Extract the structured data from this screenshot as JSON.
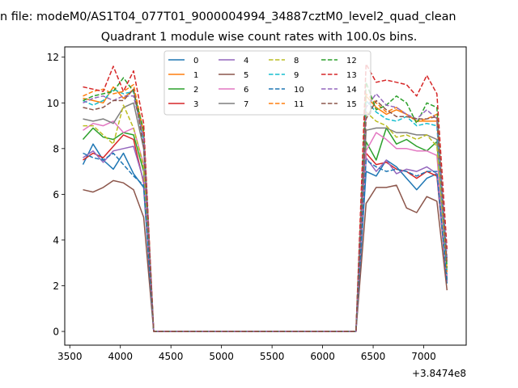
{
  "figure": {
    "suptitle": "n file: modeM0/AS1T04_077T01_9000004994_34887cztM0_level2_quad_clean",
    "offset_label": "+3.8474e8"
  },
  "chart_data": {
    "type": "line",
    "title": "Quadrant 1 module wise count rates with 100.0s bins.",
    "xlabel": "",
    "ylabel": "",
    "xlim": [
      3450,
      7420
    ],
    "ylim": [
      -0.6,
      12.45
    ],
    "x_offset": 384740000,
    "xticks": [
      3500,
      4000,
      4500,
      5000,
      5500,
      6000,
      6500,
      7000
    ],
    "yticks": [
      0,
      2,
      4,
      6,
      8,
      10,
      12
    ],
    "grid": false,
    "legend": {
      "placement": "upper-center",
      "columns": 4
    },
    "x": [
      3630,
      3730,
      3830,
      3930,
      4030,
      4130,
      4230,
      4330,
      4430,
      4530,
      4630,
      4730,
      4830,
      4930,
      5030,
      5130,
      5230,
      5330,
      5430,
      5530,
      5630,
      5730,
      5830,
      5930,
      6030,
      6130,
      6230,
      6330,
      6430,
      6530,
      6630,
      6730,
      6830,
      6930,
      7030,
      7130,
      7230
    ],
    "series": [
      {
        "name": "0",
        "color": "#1f77b4",
        "dash": "solid",
        "values": [
          7.3,
          8.2,
          7.5,
          7.1,
          7.8,
          6.9,
          6.3,
          0,
          0,
          0,
          0,
          0,
          0,
          0,
          0,
          0,
          0,
          0,
          0,
          0,
          0,
          0,
          0,
          0,
          0,
          0,
          0,
          0,
          7.0,
          6.8,
          7.5,
          7.2,
          6.7,
          6.2,
          6.7,
          6.9,
          2.1
        ]
      },
      {
        "name": "1",
        "color": "#ff7f0e",
        "dash": "solid",
        "values": [
          10.2,
          10.1,
          10.0,
          10.7,
          10.2,
          10.6,
          8.6,
          0,
          0,
          0,
          0,
          0,
          0,
          0,
          0,
          0,
          0,
          0,
          0,
          0,
          0,
          0,
          0,
          0,
          0,
          0,
          0,
          0,
          10.3,
          9.8,
          9.5,
          9.7,
          9.5,
          9.2,
          9.2,
          9.2,
          2.4
        ]
      },
      {
        "name": "2",
        "color": "#2ca02c",
        "dash": "solid",
        "values": [
          8.4,
          8.9,
          8.5,
          8.4,
          8.7,
          8.6,
          7.0,
          0,
          0,
          0,
          0,
          0,
          0,
          0,
          0,
          0,
          0,
          0,
          0,
          0,
          0,
          0,
          0,
          0,
          0,
          0,
          0,
          0,
          8.3,
          7.5,
          8.9,
          8.2,
          8.4,
          8.1,
          7.9,
          8.3,
          2.3
        ]
      },
      {
        "name": "3",
        "color": "#d62728",
        "dash": "solid",
        "values": [
          7.5,
          7.8,
          7.6,
          8.1,
          8.6,
          8.4,
          6.5,
          0,
          0,
          0,
          0,
          0,
          0,
          0,
          0,
          0,
          0,
          0,
          0,
          0,
          0,
          0,
          0,
          0,
          0,
          0,
          0,
          0,
          7.8,
          7.3,
          7.4,
          7.1,
          7.0,
          6.7,
          7.0,
          6.8,
          2.2
        ]
      },
      {
        "name": "4",
        "color": "#9467bd",
        "dash": "solid",
        "values": [
          7.6,
          7.9,
          7.4,
          7.9,
          8.0,
          8.1,
          6.6,
          0,
          0,
          0,
          0,
          0,
          0,
          0,
          0,
          0,
          0,
          0,
          0,
          0,
          0,
          0,
          0,
          0,
          0,
          0,
          0,
          0,
          7.6,
          7.0,
          7.5,
          6.9,
          7.1,
          7.0,
          7.2,
          6.9,
          2.2
        ]
      },
      {
        "name": "5",
        "color": "#8c564b",
        "dash": "solid",
        "values": [
          6.2,
          6.1,
          6.3,
          6.6,
          6.5,
          6.2,
          5.0,
          0,
          0,
          0,
          0,
          0,
          0,
          0,
          0,
          0,
          0,
          0,
          0,
          0,
          0,
          0,
          0,
          0,
          0,
          0,
          0,
          0,
          5.6,
          6.3,
          6.3,
          6.4,
          5.4,
          5.2,
          5.9,
          5.7,
          1.8
        ]
      },
      {
        "name": "6",
        "color": "#e377c2",
        "dash": "solid",
        "values": [
          8.8,
          9.1,
          9.0,
          9.2,
          8.7,
          8.9,
          7.3,
          0,
          0,
          0,
          0,
          0,
          0,
          0,
          0,
          0,
          0,
          0,
          0,
          0,
          0,
          0,
          0,
          0,
          0,
          0,
          0,
          0,
          7.9,
          8.7,
          8.4,
          8.0,
          8.0,
          7.9,
          7.9,
          7.7,
          2.4
        ]
      },
      {
        "name": "7",
        "color": "#7f7f7f",
        "dash": "solid",
        "values": [
          9.3,
          9.2,
          9.3,
          9.1,
          9.8,
          10.0,
          8.0,
          0,
          0,
          0,
          0,
          0,
          0,
          0,
          0,
          0,
          0,
          0,
          0,
          0,
          0,
          0,
          0,
          0,
          0,
          0,
          0,
          0,
          8.8,
          8.9,
          8.9,
          8.7,
          8.7,
          8.6,
          8.6,
          8.4,
          2.6
        ]
      },
      {
        "name": "8",
        "color": "#bcbd22",
        "dash": "dashed",
        "values": [
          9.0,
          9.0,
          8.6,
          8.2,
          9.9,
          8.9,
          7.2,
          0,
          0,
          0,
          0,
          0,
          0,
          0,
          0,
          0,
          0,
          0,
          0,
          0,
          0,
          0,
          0,
          0,
          0,
          0,
          0,
          0,
          9.6,
          9.2,
          9.0,
          8.5,
          8.6,
          8.4,
          8.6,
          8.1,
          2.7
        ]
      },
      {
        "name": "9",
        "color": "#17becf",
        "dash": "dashed",
        "values": [
          10.1,
          9.9,
          10.1,
          10.6,
          10.4,
          10.5,
          8.3,
          0,
          0,
          0,
          0,
          0,
          0,
          0,
          0,
          0,
          0,
          0,
          0,
          0,
          0,
          0,
          0,
          0,
          0,
          0,
          0,
          0,
          10.1,
          9.6,
          9.3,
          9.2,
          9.4,
          9.0,
          9.1,
          9.0,
          2.5
        ]
      },
      {
        "name": "10",
        "color": "#1f77b4",
        "dash": "dashed",
        "values": [
          7.8,
          7.6,
          7.5,
          7.8,
          7.3,
          6.8,
          6.4,
          0,
          0,
          0,
          0,
          0,
          0,
          0,
          0,
          0,
          0,
          0,
          0,
          0,
          0,
          0,
          0,
          0,
          0,
          0,
          0,
          0,
          7.5,
          7.2,
          7.0,
          7.1,
          7.0,
          6.8,
          7.0,
          7.0,
          2.2
        ]
      },
      {
        "name": "11",
        "color": "#ff7f0e",
        "dash": "dashed",
        "values": [
          10.3,
          10.5,
          10.6,
          10.4,
          10.5,
          10.8,
          8.7,
          0,
          0,
          0,
          0,
          0,
          0,
          0,
          0,
          0,
          0,
          0,
          0,
          0,
          0,
          0,
          0,
          0,
          0,
          0,
          0,
          0,
          10.4,
          10.0,
          9.6,
          9.8,
          9.5,
          9.2,
          9.3,
          9.5,
          2.6
        ]
      },
      {
        "name": "12",
        "color": "#2ca02c",
        "dash": "dashed",
        "values": [
          10.1,
          10.3,
          10.4,
          10.5,
          11.1,
          10.5,
          8.8,
          0,
          0,
          0,
          0,
          0,
          0,
          0,
          0,
          0,
          0,
          0,
          0,
          0,
          0,
          0,
          0,
          0,
          0,
          0,
          0,
          0,
          10.9,
          9.7,
          9.9,
          10.3,
          10.0,
          9.1,
          10.0,
          9.8,
          2.8
        ]
      },
      {
        "name": "13",
        "color": "#d62728",
        "dash": "dashed",
        "values": [
          10.7,
          10.6,
          10.5,
          11.6,
          10.5,
          11.4,
          9.1,
          0,
          0,
          0,
          0,
          0,
          0,
          0,
          0,
          0,
          0,
          0,
          0,
          0,
          0,
          0,
          0,
          0,
          0,
          0,
          0,
          0,
          11.7,
          10.9,
          11.0,
          10.9,
          10.8,
          10.3,
          11.2,
          10.4,
          3.6
        ]
      },
      {
        "name": "14",
        "color": "#9467bd",
        "dash": "dashed",
        "values": [
          10.0,
          10.2,
          10.3,
          10.1,
          10.3,
          10.3,
          8.5,
          0,
          0,
          0,
          0,
          0,
          0,
          0,
          0,
          0,
          0,
          0,
          0,
          0,
          0,
          0,
          0,
          0,
          0,
          0,
          0,
          0,
          9.8,
          10.4,
          9.9,
          9.8,
          9.5,
          9.3,
          9.7,
          9.3,
          3.2
        ]
      },
      {
        "name": "15",
        "color": "#8c564b",
        "dash": "dashed",
        "values": [
          9.8,
          9.7,
          9.8,
          10.1,
          10.1,
          10.6,
          8.1,
          0,
          0,
          0,
          0,
          0,
          0,
          0,
          0,
          0,
          0,
          0,
          0,
          0,
          0,
          0,
          0,
          0,
          0,
          0,
          0,
          0,
          9.3,
          10.1,
          9.7,
          9.4,
          9.4,
          9.3,
          9.3,
          9.4,
          3.0
        ]
      }
    ]
  }
}
